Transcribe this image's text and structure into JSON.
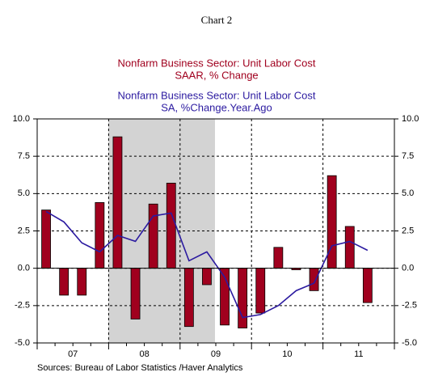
{
  "chart_data": {
    "type": "bar_line",
    "title": "Chart 2",
    "source": "Sources:  Bureau of Labor Statistics /Haver Analytics",
    "year_labels": [
      "07",
      "08",
      "09",
      "10",
      "11"
    ],
    "series": [
      {
        "name": "Nonfarm Business Sector: Unit Labor Cost",
        "unit": "SAAR, % Change",
        "kind": "bar",
        "color": "#a0001e",
        "values": [
          3.9,
          -1.8,
          -1.8,
          4.4,
          8.8,
          -3.4,
          4.3,
          5.7,
          -3.9,
          -1.1,
          -3.8,
          -4.0,
          -3.0,
          1.4,
          -0.1,
          -1.5,
          6.2,
          2.8,
          -2.3,
          null
        ]
      },
      {
        "name": "Nonfarm Business Sector: Unit Labor Cost",
        "unit": "SA, %Change.Year.Ago",
        "kind": "line",
        "color": "#2b1aa0",
        "values": [
          3.8,
          3.1,
          1.7,
          1.1,
          2.2,
          1.8,
          3.5,
          3.7,
          0.5,
          1.1,
          -0.6,
          -3.3,
          -3.1,
          -2.5,
          -1.5,
          -1.0,
          1.5,
          1.8,
          1.2,
          null
        ]
      }
    ],
    "ylim": [
      -5,
      10
    ],
    "yticks": [
      {
        "value": 10,
        "label": "10.0"
      },
      {
        "value": 7.5,
        "label": "7.5"
      },
      {
        "value": 5,
        "label": "5.0"
      },
      2.5,
      {
        "value": 0,
        "label": "0.0"
      },
      -2.5,
      {
        "value": -5,
        "label": "-5.0"
      }
    ],
    "grid": true
  }
}
